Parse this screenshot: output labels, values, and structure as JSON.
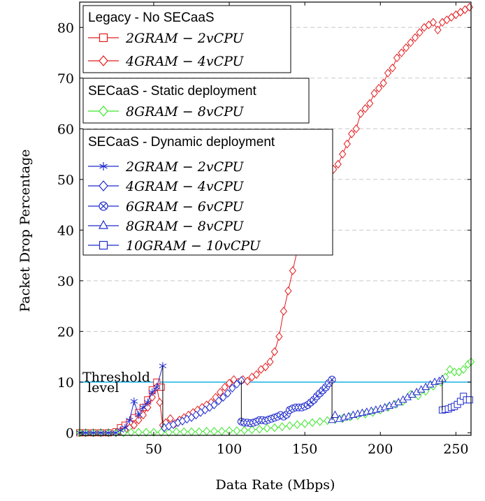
{
  "chart_data": {
    "type": "line",
    "xlabel": "Data Rate (Mbps)",
    "ylabel": "Packet Drop Percentage",
    "xlim": [
      1,
      260
    ],
    "ylim": [
      -0.5,
      85
    ],
    "xticks": [
      50,
      100,
      150,
      200,
      250
    ],
    "yticks": [
      0,
      10,
      20,
      30,
      40,
      50,
      60,
      70,
      80
    ],
    "grid": "horizontal dashed",
    "threshold": {
      "value": 10,
      "label_line1": "Threshold",
      "label_line2": "level",
      "color": "#29b8e6"
    },
    "legend_groups": [
      {
        "title": "Legacy - No SECaaS",
        "series": [
          "2GRAM − 2vCPU",
          "4GRAM − 4vCPU"
        ]
      },
      {
        "title": "SECaaS - Static deployment",
        "series": [
          "8GRAM − 8vCPU"
        ]
      },
      {
        "title": "SECaaS - Dynamic deployment",
        "series": [
          "2GRAM − 2vCPU",
          "4GRAM − 4vCPU",
          "6GRAM − 6vCPU",
          "8GRAM − 8vCPU",
          "10GRAM − 10vCPU"
        ]
      }
    ],
    "series": [
      {
        "name": "2GRAM − 2vCPU",
        "group": "Legacy - No SECaaS",
        "color": "#e41a1c",
        "marker": "square",
        "connect": true,
        "x": [
          1,
          5,
          10,
          15,
          20,
          25,
          28,
          31,
          34,
          37,
          40,
          43,
          46,
          49,
          52,
          55
        ],
        "y": [
          0,
          0,
          0,
          0,
          0,
          0.2,
          1,
          1.5,
          2,
          3,
          4,
          5,
          6.5,
          8.5,
          10,
          9
        ]
      },
      {
        "name": "4GRAM − 4vCPU",
        "group": "Legacy - No SECaaS",
        "color": "#e41a1c",
        "marker": "diamond",
        "connect": true,
        "x": [
          1,
          5,
          10,
          15,
          20,
          25,
          28,
          31,
          34,
          37,
          40,
          43,
          46,
          49,
          52,
          54,
          56,
          58,
          61,
          64,
          67,
          70,
          73,
          76,
          79,
          82,
          85,
          88,
          91,
          94,
          97,
          100,
          103,
          106,
          109,
          112,
          115,
          118,
          121,
          124,
          127,
          130,
          133,
          136,
          139,
          142,
          145,
          148,
          151,
          154,
          157,
          160,
          163,
          166,
          169,
          172,
          175,
          178,
          181,
          184,
          187,
          190,
          193,
          196,
          199,
          202,
          205,
          208,
          211,
          214,
          217,
          220,
          223,
          226,
          229,
          232,
          235,
          238,
          241,
          244,
          247,
          250,
          253,
          256,
          259
        ],
        "y": [
          0,
          0,
          0,
          0,
          0,
          0,
          0.3,
          0.5,
          1,
          1.5,
          2.5,
          3.5,
          5,
          7,
          9,
          6,
          1.5,
          2,
          2.8,
          1.8,
          2.5,
          3,
          3.5,
          4,
          4.5,
          5,
          5.5,
          6,
          7,
          8,
          9,
          9.8,
          10.5,
          10,
          10.5,
          10.2,
          11,
          11.5,
          12.5,
          13,
          14,
          16,
          19,
          24,
          28,
          32,
          36,
          38,
          40,
          42,
          44,
          46,
          48,
          50,
          52,
          53,
          55,
          57,
          59,
          60,
          63,
          64,
          65,
          67,
          68,
          69,
          71,
          72,
          74,
          75,
          76,
          77,
          78,
          79,
          80,
          80.5,
          81,
          79.5,
          81,
          81.5,
          82,
          82.5,
          83,
          83.5,
          84
        ]
      },
      {
        "name": "8GRAM − 8vCPU",
        "group": "SECaaS - Static deployment",
        "color": "#3ce62a",
        "marker": "diamond",
        "connect": true,
        "x": [
          1,
          5,
          10,
          15,
          20,
          25,
          30,
          35,
          40,
          45,
          50,
          55,
          60,
          65,
          70,
          75,
          80,
          85,
          90,
          95,
          100,
          105,
          110,
          115,
          120,
          125,
          130,
          135,
          140,
          145,
          150,
          155,
          160,
          165,
          170,
          175,
          180,
          185,
          190,
          195,
          200,
          205,
          210,
          215,
          220,
          225,
          230,
          235,
          240,
          243,
          246,
          249,
          252,
          255,
          258,
          260
        ],
        "y": [
          0,
          0,
          0,
          0,
          0,
          0,
          0,
          0.1,
          0.1,
          0.1,
          0.1,
          0.1,
          0.1,
          0.2,
          0.2,
          0.2,
          0.2,
          0.3,
          0.3,
          0.3,
          0.4,
          0.4,
          0.5,
          0.6,
          0.7,
          0.9,
          1,
          1.2,
          1.4,
          1.6,
          1.8,
          2,
          2.2,
          2.4,
          2.6,
          2.8,
          3.1,
          3.4,
          3.7,
          4,
          4.5,
          5,
          5.6,
          6.2,
          7.6,
          7.3,
          8.2,
          9.2,
          10,
          11,
          12.5,
          12,
          12,
          12.5,
          13.5,
          14
        ]
      },
      {
        "name": "2GRAM − 2vCPU",
        "group": "SECaaS - Dynamic deployment",
        "color": "#1f2bcc",
        "marker": "star",
        "connect": true,
        "x": [
          1,
          5,
          10,
          15,
          20,
          25,
          28,
          31,
          34,
          37,
          40,
          43,
          46,
          49,
          52,
          56
        ],
        "y": [
          0,
          0,
          0,
          0,
          0,
          0,
          0.5,
          1,
          2.5,
          6.2,
          3.5,
          5,
          6,
          8,
          9,
          13.2
        ]
      },
      {
        "name": "4GRAM − 4vCPU",
        "group": "SECaaS - Dynamic deployment",
        "color": "#1f2bcc",
        "marker": "diamond",
        "connect": true,
        "x": [
          57,
          60,
          63,
          66,
          69,
          72,
          75,
          78,
          81,
          84,
          87,
          90,
          93,
          96,
          99,
          102,
          105,
          108
        ],
        "y": [
          1,
          1.3,
          1.6,
          2,
          2.3,
          2.7,
          3,
          3.5,
          4,
          4.5,
          5,
          5.5,
          6.3,
          7,
          7.8,
          8.8,
          9.6,
          10.3
        ]
      },
      {
        "name": "6GRAM − 6vCPU",
        "group": "SECaaS - Dynamic deployment",
        "color": "#1f2bcc",
        "marker": "circle-x",
        "connect": true,
        "x": [
          108,
          110,
          112,
          114,
          116,
          118,
          120,
          122,
          124,
          126,
          128,
          130,
          132,
          134,
          136,
          138,
          140,
          142,
          144,
          146,
          148,
          150,
          152,
          154,
          156,
          158,
          160,
          162,
          164,
          166,
          168
        ],
        "y": [
          2.2,
          2,
          2,
          1.9,
          2,
          2.2,
          2.5,
          2.5,
          2.4,
          2.6,
          2.8,
          3,
          3.2,
          3.5,
          3.2,
          3.6,
          4.5,
          4.8,
          5,
          5,
          5,
          5.2,
          5.5,
          6,
          6.5,
          7.2,
          7.8,
          8.4,
          9,
          9.8,
          10.5
        ]
      },
      {
        "name": "8GRAM − 8vCPU",
        "group": "SECaaS - Dynamic deployment",
        "color": "#1f2bcc",
        "marker": "triangle",
        "connect": true,
        "x": [
          168,
          170,
          173,
          176,
          179,
          182,
          185,
          188,
          191,
          194,
          197,
          200,
          203,
          206,
          209,
          212,
          215,
          218,
          221,
          224,
          227,
          230,
          233,
          236,
          239,
          241
        ],
        "y": [
          2.5,
          3.5,
          2.7,
          3,
          3.2,
          3.5,
          3.7,
          3.9,
          4.1,
          4.3,
          4.5,
          4.7,
          5,
          5.3,
          5.6,
          6,
          6.5,
          7,
          7.5,
          8,
          8.5,
          9,
          9.5,
          10,
          10.2,
          10.6
        ]
      },
      {
        "name": "10GRAM − 10vCPU",
        "group": "SECaaS - Dynamic deployment",
        "color": "#1f2bcc",
        "marker": "square",
        "connect": true,
        "x": [
          241,
          243,
          245,
          247,
          249,
          251,
          253,
          255,
          257,
          259
        ],
        "y": [
          4.5,
          4.6,
          4.7,
          5,
          5.2,
          5.6,
          6.2,
          7.2,
          6.5,
          6.5
        ]
      }
    ],
    "jumps": [
      {
        "x": 56,
        "y1": 13.2,
        "y2": 1
      },
      {
        "x": 108,
        "y1": 10.3,
        "y2": 2.2
      },
      {
        "x": 168,
        "y1": 10.5,
        "y2": 2.5
      },
      {
        "x": 241,
        "y1": 10.6,
        "y2": 4.5
      }
    ]
  }
}
